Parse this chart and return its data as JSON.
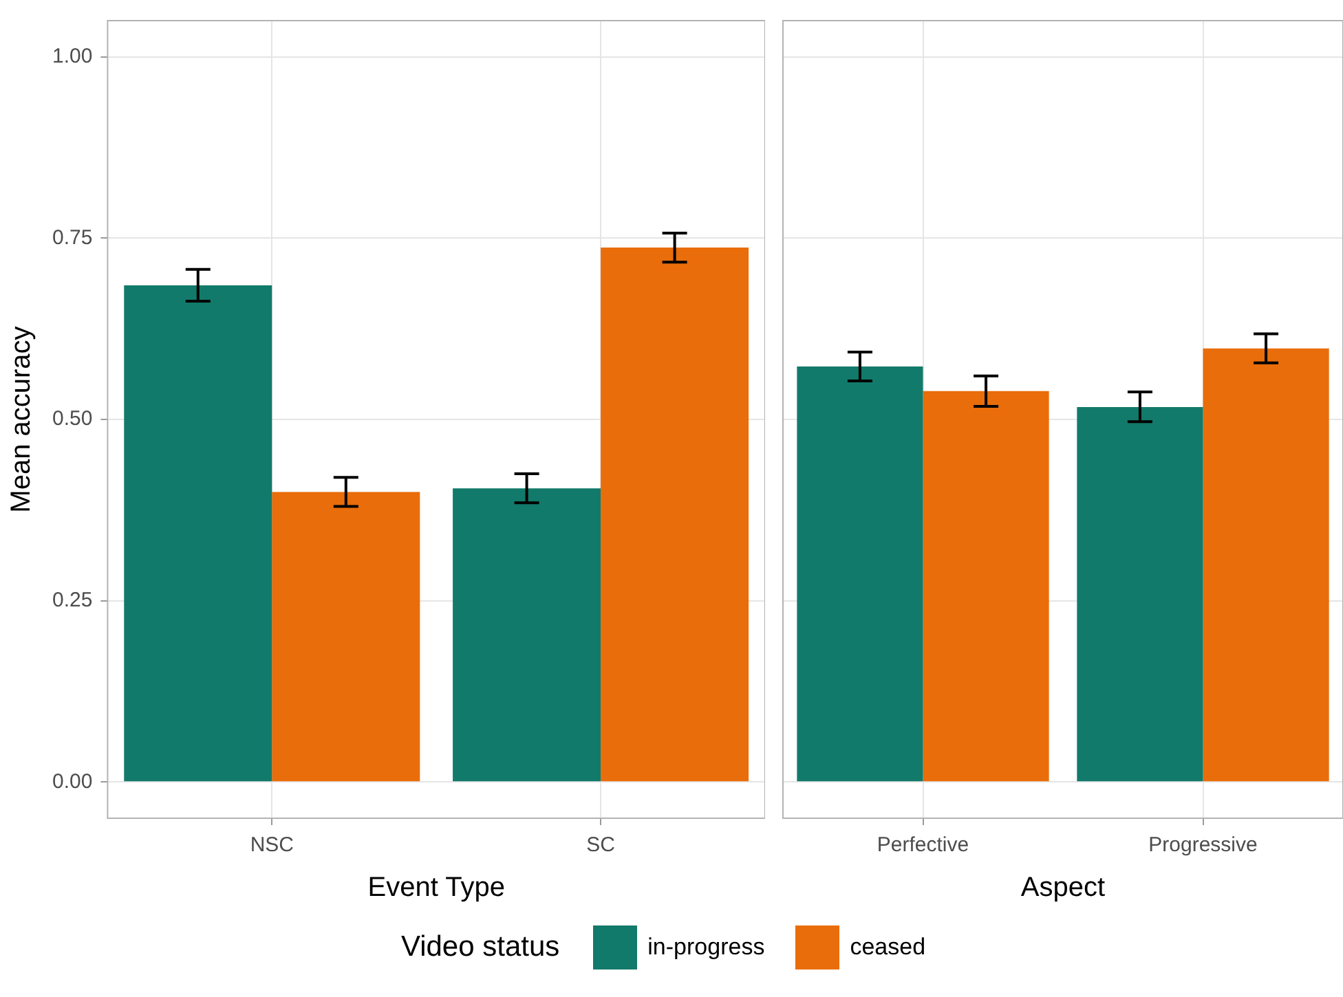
{
  "chart_data": [
    {
      "type": "bar",
      "xlabel": "Event Type",
      "ylabel": "Mean accuracy",
      "categories": [
        "NSC",
        "SC"
      ],
      "series": [
        {
          "name": "in-progress",
          "color": "#127a6a",
          "values": [
            0.685,
            0.405
          ],
          "errors": [
            [
              0.663,
              0.707
            ],
            [
              0.385,
              0.425
            ]
          ]
        },
        {
          "name": "ceased",
          "color": "#e96d0a",
          "values": [
            0.4,
            0.737
          ],
          "errors": [
            [
              0.38,
              0.42
            ],
            [
              0.717,
              0.757
            ]
          ]
        }
      ],
      "ylim": [
        -0.05,
        1.05
      ],
      "yticks": [
        {
          "value": 0,
          "label": "0.00"
        },
        {
          "value": 0.25,
          "label": "0.25"
        },
        {
          "value": 0.5,
          "label": "0.50"
        },
        {
          "value": 0.75,
          "label": "0.75"
        },
        {
          "value": 1,
          "label": "1.00"
        }
      ],
      "grid": true,
      "legend": "bottom",
      "legend_title": "Video status"
    },
    {
      "type": "bar",
      "xlabel": "Aspect",
      "categories": [
        "Perfective",
        "Progressive"
      ],
      "series": [
        {
          "color": "#127a6a",
          "values": [
            0.573,
            0.517
          ],
          "errors": [
            [
              0.553,
              0.593
            ],
            [
              0.497,
              0.538
            ]
          ]
        },
        {
          "color": "#e96d0a",
          "values": [
            0.539,
            0.598
          ],
          "errors": [
            [
              0.518,
              0.56
            ],
            [
              0.578,
              0.618
            ]
          ]
        }
      ],
      "ylim": [
        -0.05,
        1.05
      ],
      "yticks": [
        {
          "value": 0,
          "label": null
        },
        {
          "value": 0.25,
          "label": null
        },
        {
          "value": 0.5,
          "label": null
        },
        {
          "value": 0.75,
          "label": null
        },
        {
          "value": 1,
          "label": null
        }
      ],
      "grid": true,
      "tick_labels": "x"
    }
  ]
}
